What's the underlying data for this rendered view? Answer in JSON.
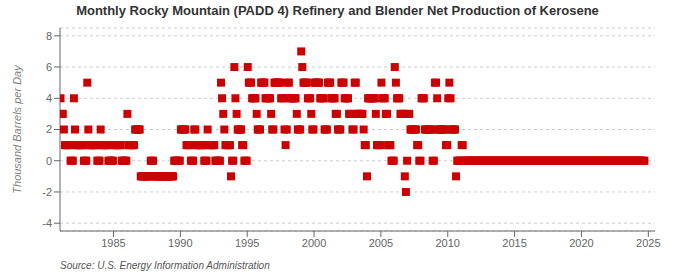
{
  "chart_data": {
    "type": "scatter",
    "title": "Monthly Rocky Mountain (PADD 4) Refinery and Blender Net Production of Kerosene",
    "y_label": "Thousand Barrels per Day",
    "annotations": [
      "Source: U.S. Energy Information Administration"
    ],
    "xlim": [
      1981.0,
      2025.5
    ],
    "ylim": [
      -4.5,
      8.5
    ],
    "xticks": [
      1985,
      1990,
      1995,
      2000,
      2005,
      2010,
      2015,
      2020,
      2025
    ],
    "yticks": [
      -4,
      -2,
      0,
      2,
      4,
      6,
      8
    ],
    "color": "#cc0000",
    "marker": "square",
    "grid": true,
    "x": [
      1981.04,
      1981.12,
      1981.21,
      1981.29,
      1981.37,
      1981.46,
      1981.54,
      1981.62,
      1981.71,
      1981.79,
      1981.87,
      1981.96,
      1982.04,
      1982.12,
      1982.21,
      1982.29,
      1982.37,
      1982.46,
      1982.54,
      1982.62,
      1982.71,
      1982.79,
      1982.87,
      1982.96,
      1983.04,
      1983.12,
      1983.21,
      1983.29,
      1983.37,
      1983.46,
      1983.54,
      1983.62,
      1983.71,
      1983.79,
      1983.87,
      1983.96,
      1984.04,
      1984.12,
      1984.21,
      1984.29,
      1984.37,
      1984.46,
      1984.54,
      1984.62,
      1984.71,
      1984.79,
      1984.87,
      1984.96,
      1985.04,
      1985.12,
      1985.21,
      1985.29,
      1985.37,
      1985.46,
      1985.54,
      1985.62,
      1985.71,
      1985.79,
      1985.87,
      1985.96,
      1986.04,
      1986.12,
      1986.21,
      1986.29,
      1986.37,
      1986.46,
      1986.54,
      1986.62,
      1986.71,
      1986.79,
      1986.87,
      1986.96,
      1987.04,
      1987.12,
      1987.21,
      1987.29,
      1987.37,
      1987.46,
      1987.54,
      1987.62,
      1987.71,
      1987.79,
      1987.87,
      1987.96,
      1988.04,
      1988.12,
      1988.21,
      1988.29,
      1988.37,
      1988.46,
      1988.54,
      1988.62,
      1988.71,
      1988.79,
      1988.87,
      1988.96,
      1989.04,
      1989.12,
      1989.21,
      1989.29,
      1989.37,
      1989.46,
      1989.54,
      1989.62,
      1989.71,
      1989.79,
      1989.87,
      1989.96,
      1990.04,
      1990.12,
      1990.21,
      1990.29,
      1990.37,
      1990.46,
      1990.54,
      1990.62,
      1990.71,
      1990.79,
      1990.87,
      1990.96,
      1991.04,
      1991.12,
      1991.21,
      1991.29,
      1991.37,
      1991.46,
      1991.54,
      1991.62,
      1991.71,
      1991.79,
      1991.87,
      1991.96,
      1992.04,
      1992.12,
      1992.21,
      1992.29,
      1992.37,
      1992.46,
      1992.54,
      1992.62,
      1992.71,
      1992.79,
      1992.87,
      1992.96,
      1993.04,
      1993.12,
      1993.21,
      1993.29,
      1993.37,
      1993.46,
      1993.54,
      1993.62,
      1993.71,
      1993.79,
      1993.87,
      1993.96,
      1994.04,
      1994.12,
      1994.21,
      1994.29,
      1994.37,
      1994.46,
      1994.54,
      1994.62,
      1994.71,
      1994.79,
      1994.87,
      1994.96,
      1995.04,
      1995.12,
      1995.21,
      1995.29,
      1995.37,
      1995.46,
      1995.54,
      1995.62,
      1995.71,
      1995.79,
      1995.87,
      1995.96,
      1996.04,
      1996.12,
      1996.21,
      1996.29,
      1996.37,
      1996.46,
      1996.54,
      1996.62,
      1996.71,
      1996.79,
      1996.87,
      1996.96,
      1997.04,
      1997.12,
      1997.21,
      1997.29,
      1997.37,
      1997.46,
      1997.54,
      1997.62,
      1997.71,
      1997.79,
      1997.87,
      1997.96,
      1998.04,
      1998.12,
      1998.21,
      1998.29,
      1998.37,
      1998.46,
      1998.54,
      1998.62,
      1998.71,
      1998.79,
      1998.87,
      1998.96,
      1999.04,
      1999.12,
      1999.21,
      1999.29,
      1999.37,
      1999.46,
      1999.54,
      1999.62,
      1999.71,
      1999.79,
      1999.87,
      1999.96,
      2000.04,
      2000.12,
      2000.21,
      2000.29,
      2000.37,
      2000.46,
      2000.54,
      2000.62,
      2000.71,
      2000.79,
      2000.87,
      2000.96,
      2001.04,
      2001.12,
      2001.21,
      2001.29,
      2001.37,
      2001.46,
      2001.54,
      2001.62,
      2001.71,
      2001.79,
      2001.87,
      2001.96,
      2002.04,
      2002.12,
      2002.21,
      2002.29,
      2002.37,
      2002.46,
      2002.54,
      2002.62,
      2002.71,
      2002.79,
      2002.87,
      2002.96,
      2003.04,
      2003.12,
      2003.21,
      2003.29,
      2003.37,
      2003.46,
      2003.54,
      2003.62,
      2003.71,
      2003.79,
      2003.87,
      2003.96,
      2004.04,
      2004.12,
      2004.21,
      2004.29,
      2004.37,
      2004.46,
      2004.54,
      2004.62,
      2004.71,
      2004.79,
      2004.87,
      2004.96,
      2005.04,
      2005.12,
      2005.21,
      2005.29,
      2005.37,
      2005.46,
      2005.54,
      2005.62,
      2005.71,
      2005.79,
      2005.87,
      2005.96,
      2006.04,
      2006.12,
      2006.21,
      2006.29,
      2006.37,
      2006.46,
      2006.54,
      2006.62,
      2006.71,
      2006.79,
      2006.87,
      2006.96,
      2007.04,
      2007.12,
      2007.21,
      2007.29,
      2007.37,
      2007.46,
      2007.54,
      2007.62,
      2007.71,
      2007.79,
      2007.87,
      2007.96,
      2008.04,
      2008.12,
      2008.21,
      2008.29,
      2008.37,
      2008.46,
      2008.54,
      2008.62,
      2008.71,
      2008.79,
      2008.87,
      2008.96,
      2009.04,
      2009.12,
      2009.21,
      2009.29,
      2009.37,
      2009.46,
      2009.54,
      2009.62,
      2009.71,
      2009.79,
      2009.87,
      2009.96,
      2010.04,
      2010.12,
      2010.21,
      2010.29,
      2010.37,
      2010.46,
      2010.54,
      2010.62,
      2010.71,
      2010.79,
      2010.87,
      2010.96,
      2011.04,
      2011.12,
      2011.21,
      2011.29,
      2011.37,
      2011.46,
      2011.54,
      2011.62,
      2011.71,
      2011.79,
      2011.87,
      2011.96,
      2012.04,
      2012.12,
      2012.21,
      2012.29,
      2012.37,
      2012.46,
      2012.54,
      2012.62,
      2012.71,
      2012.79,
      2012.87,
      2012.96,
      2013.04,
      2013.12,
      2013.21,
      2013.29,
      2013.37,
      2013.46,
      2013.54,
      2013.62,
      2013.71,
      2013.79,
      2013.87,
      2013.96,
      2014.04,
      2014.12,
      2014.21,
      2014.29,
      2014.37,
      2014.46,
      2014.54,
      2014.62,
      2014.71,
      2014.79,
      2014.87,
      2014.96,
      2015.04,
      2015.12,
      2015.21,
      2015.29,
      2015.37,
      2015.46,
      2015.54,
      2015.62,
      2015.71,
      2015.79,
      2015.87,
      2015.96,
      2016.04,
      2016.12,
      2016.21,
      2016.29,
      2016.37,
      2016.46,
      2016.54,
      2016.62,
      2016.71,
      2016.79,
      2016.87,
      2016.96,
      2017.04,
      2017.12,
      2017.21,
      2017.29,
      2017.37,
      2017.46,
      2017.54,
      2017.62,
      2017.71,
      2017.79,
      2017.87,
      2017.96,
      2018.04,
      2018.12,
      2018.21,
      2018.29,
      2018.37,
      2018.46,
      2018.54,
      2018.62,
      2018.71,
      2018.79,
      2018.87,
      2018.96,
      2019.04,
      2019.12,
      2019.21,
      2019.29,
      2019.37,
      2019.46,
      2019.54,
      2019.62,
      2019.71,
      2019.79,
      2019.87,
      2019.96,
      2020.04,
      2020.12,
      2020.21,
      2020.29,
      2020.37,
      2020.46,
      2020.54,
      2020.62,
      2020.71,
      2020.79,
      2020.87,
      2020.96,
      2021.04,
      2021.12,
      2021.21,
      2021.29,
      2021.37,
      2021.46,
      2021.54,
      2021.62,
      2021.71,
      2021.79,
      2021.87,
      2021.96,
      2022.04,
      2022.12,
      2022.21,
      2022.29,
      2022.37,
      2022.46,
      2022.54,
      2022.62,
      2022.71,
      2022.79,
      2022.87,
      2022.96,
      2023.04,
      2023.12,
      2023.21,
      2023.29,
      2023.37,
      2023.46,
      2023.54,
      2023.62,
      2023.71,
      2023.79,
      2023.87,
      2023.96,
      2024.04,
      2024.12,
      2024.21,
      2024.29,
      2024.37,
      2024.46,
      2024.54,
      2024.62,
      2024.71
    ],
    "values": [
      4,
      3,
      3,
      2,
      1,
      1,
      1,
      1,
      1,
      0,
      0,
      0,
      4,
      2,
      1,
      1,
      1,
      1,
      1,
      1,
      1,
      0,
      0,
      0,
      5,
      2,
      1,
      1,
      1,
      1,
      1,
      1,
      1,
      0,
      0,
      0,
      2,
      1,
      1,
      1,
      1,
      1,
      1,
      0,
      0,
      0,
      0,
      0,
      1,
      1,
      1,
      1,
      1,
      1,
      1,
      0,
      0,
      0,
      0,
      0,
      3,
      1,
      1,
      1,
      1,
      1,
      1,
      2,
      2,
      2,
      2,
      2,
      -1,
      -1,
      -1,
      -1,
      -1,
      -1,
      -1,
      -1,
      -1,
      0,
      0,
      0,
      -1,
      -1,
      -1,
      -1,
      -1,
      -1,
      -1,
      -1,
      -1,
      -1,
      -1,
      -1,
      -1,
      -1,
      -1,
      -1,
      -1,
      -1,
      0,
      0,
      0,
      0,
      0,
      0,
      2,
      2,
      2,
      2,
      2,
      1,
      1,
      1,
      1,
      0,
      0,
      0,
      2,
      2,
      1,
      1,
      1,
      1,
      1,
      1,
      1,
      0,
      0,
      0,
      2,
      1,
      1,
      1,
      1,
      1,
      1,
      0,
      0,
      0,
      0,
      0,
      5,
      4,
      3,
      2,
      1,
      1,
      1,
      1,
      1,
      -1,
      0,
      0,
      6,
      4,
      3,
      2,
      2,
      2,
      2,
      1,
      1,
      0,
      0,
      0,
      6,
      5,
      5,
      5,
      4,
      4,
      4,
      4,
      3,
      2,
      2,
      2,
      5,
      5,
      5,
      5,
      4,
      4,
      4,
      4,
      4,
      3,
      2,
      2,
      5,
      5,
      5,
      5,
      5,
      5,
      4,
      4,
      4,
      2,
      1,
      2,
      5,
      5,
      4,
      4,
      4,
      4,
      4,
      4,
      3,
      2,
      2,
      2,
      7,
      6,
      5,
      5,
      5,
      5,
      4,
      4,
      4,
      3,
      2,
      2,
      5,
      5,
      5,
      5,
      5,
      4,
      4,
      4,
      4,
      2,
      2,
      2,
      5,
      5,
      5,
      4,
      4,
      4,
      4,
      3,
      3,
      2,
      2,
      2,
      5,
      5,
      5,
      4,
      4,
      4,
      4,
      3,
      3,
      3,
      2,
      2,
      5,
      5,
      3,
      3,
      3,
      3,
      3,
      3,
      2,
      1,
      1,
      -1,
      4,
      4,
      4,
      4,
      4,
      4,
      4,
      3,
      1,
      1,
      1,
      1,
      5,
      4,
      4,
      4,
      3,
      3,
      1,
      1,
      1,
      0,
      0,
      0,
      6,
      5,
      4,
      4,
      4,
      3,
      3,
      3,
      3,
      -1,
      -2,
      0,
      3,
      3,
      2,
      2,
      2,
      2,
      2,
      2,
      1,
      1,
      0,
      0,
      4,
      4,
      4,
      2,
      2,
      2,
      2,
      2,
      2,
      2,
      0,
      0,
      5,
      5,
      4,
      2,
      2,
      2,
      2,
      2,
      2,
      2,
      1,
      1,
      4,
      5,
      4,
      2,
      2,
      2,
      2,
      -1,
      0,
      0,
      0,
      0,
      1,
      1,
      0,
      0,
      0,
      0,
      0,
      0,
      0,
      0,
      0,
      0,
      0,
      0,
      0,
      0,
      0,
      0,
      0,
      0,
      0,
      0,
      0,
      0,
      0,
      0,
      0,
      0,
      0,
      0,
      0,
      0,
      0,
      0,
      0,
      0,
      0,
      0,
      0,
      0,
      0,
      0,
      0,
      0,
      0,
      0,
      0,
      0,
      0,
      0,
      0,
      0,
      0,
      0,
      0,
      0,
      0,
      0,
      0,
      0,
      0,
      0,
      0,
      0,
      0,
      0,
      0,
      0,
      0,
      0,
      0,
      0,
      0,
      0,
      0,
      0,
      0,
      0,
      0,
      0,
      0,
      0,
      0,
      0,
      0,
      0,
      0,
      0,
      0,
      0,
      0,
      0,
      0,
      0,
      0,
      0,
      0,
      0,
      0,
      0,
      0,
      0,
      0,
      0,
      0,
      0,
      0,
      0,
      0,
      0,
      0,
      0,
      0,
      0,
      0,
      0,
      0,
      0,
      0,
      0,
      0,
      0,
      0,
      0,
      0,
      0,
      0,
      0,
      0,
      0,
      0,
      0,
      0,
      0,
      0,
      0,
      0,
      0,
      0,
      0,
      0,
      0,
      0,
      0,
      0,
      0,
      0,
      0,
      0,
      0,
      0,
      0,
      0,
      0,
      0,
      0,
      0,
      0,
      0,
      0,
      0,
      0,
      0,
      0,
      0
    ]
  }
}
